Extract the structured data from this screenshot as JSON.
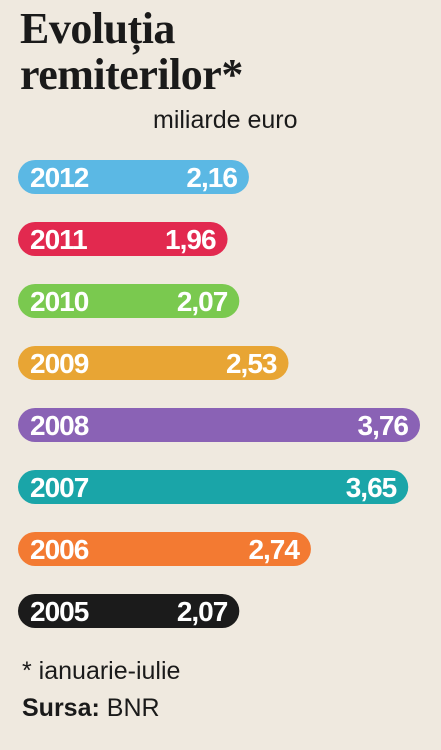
{
  "chart_data": {
    "type": "bar",
    "orientation": "horizontal",
    "title_line1": "Evoluția",
    "title_line2": "remiterilor*",
    "unit_label": "miliarde euro",
    "categories": [
      "2012",
      "2011",
      "2010",
      "2009",
      "2008",
      "2007",
      "2006",
      "2005"
    ],
    "values": [
      2.16,
      1.96,
      2.07,
      2.53,
      3.76,
      3.65,
      2.74,
      2.07
    ],
    "value_labels": [
      "2,16",
      "1,96",
      "2,07",
      "2,53",
      "3,76",
      "3,65",
      "2,74",
      "2,07"
    ],
    "colors": [
      "#5bb8e4",
      "#e2294f",
      "#7ac94f",
      "#e8a534",
      "#8a62b5",
      "#1aa5a8",
      "#f37a32",
      "#1b1b1b"
    ],
    "grid": false,
    "legend": "none"
  },
  "footnote": "* ianuarie-iulie",
  "source": {
    "label": "Sursa:",
    "value": "BNR"
  }
}
